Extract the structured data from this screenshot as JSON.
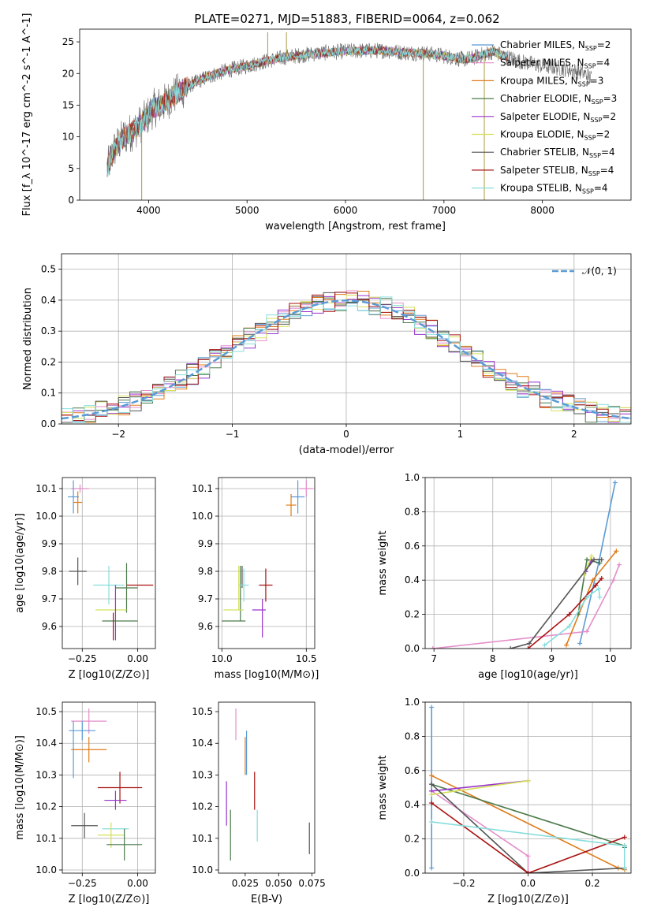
{
  "figure_title": "PLATE=0271, MJD=51883, FIBERID=0064, z=0.062",
  "colors": {
    "chabrier_miles": "#5b9bd5",
    "salpeter_miles": "#e48ec9",
    "kroupa_miles": "#e07b1a",
    "chabrier_elodie": "#4c7a4c",
    "salpeter_elodie": "#9933cc",
    "kroupa_elodie": "#d4e05a",
    "chabrier_stelib": "#555555",
    "salpeter_stelib": "#aa1111",
    "kroupa_stelib": "#88dddd"
  },
  "chart_data": [
    {
      "id": "spectrum",
      "type": "line",
      "xlabel": "wavelength [Angstrom, rest frame]",
      "ylabel": "Flux [f_λ 10^-17 erg cm^-2 s^-1 A^-1]",
      "xlim": [
        3300,
        8900
      ],
      "ylim": [
        0,
        27
      ],
      "xticks": [
        4000,
        5000,
        6000,
        7000,
        8000
      ],
      "yticks": [
        0,
        5,
        10,
        15,
        20,
        25
      ],
      "grid": false,
      "legend_position": "right",
      "legend": [
        {
          "label": "Chabrier MILES, N",
          "sub": "SSP",
          "suffix": "=2",
          "color": "#5b9bd5"
        },
        {
          "label": "Salpeter MILES, N",
          "sub": "SSP",
          "suffix": "=4",
          "color": "#e48ec9"
        },
        {
          "label": "Kroupa MILES, N",
          "sub": "SSP",
          "suffix": "=3",
          "color": "#e07b1a"
        },
        {
          "label": "Chabrier ELODIE, N",
          "sub": "SSP",
          "suffix": "=3",
          "color": "#4c7a4c"
        },
        {
          "label": "Salpeter ELODIE, N",
          "sub": "SSP",
          "suffix": "=2",
          "color": "#9933cc"
        },
        {
          "label": "Kroupa ELODIE, N",
          "sub": "SSP",
          "suffix": "=2",
          "color": "#d4e05a"
        },
        {
          "label": "Chabrier STELIB, N",
          "sub": "SSP",
          "suffix": "=4",
          "color": "#555555"
        },
        {
          "label": "Salpeter STELIB, N",
          "sub": "SSP",
          "suffix": "=4",
          "color": "#aa1111"
        },
        {
          "label": "Kroupa STELIB, N",
          "sub": "SSP",
          "suffix": "=4",
          "color": "#88dddd"
        }
      ],
      "continuum": [
        [
          3580,
          5
        ],
        [
          3650,
          8
        ],
        [
          3750,
          10
        ],
        [
          3850,
          11
        ],
        [
          3950,
          12.5
        ],
        [
          4050,
          14.5
        ],
        [
          4150,
          15.2
        ],
        [
          4250,
          16.5
        ],
        [
          4400,
          18
        ],
        [
          4600,
          19.5
        ],
        [
          4800,
          20.5
        ],
        [
          5000,
          21.2
        ],
        [
          5200,
          22
        ],
        [
          5400,
          22.6
        ],
        [
          5600,
          23
        ],
        [
          5800,
          23.3
        ],
        [
          6000,
          23.5
        ],
        [
          6200,
          23.6
        ],
        [
          6400,
          23.6
        ],
        [
          6600,
          23.3
        ],
        [
          6800,
          23.2
        ],
        [
          7000,
          22.8
        ],
        [
          7200,
          22.2
        ],
        [
          7300,
          22.5
        ],
        [
          7500,
          23.5
        ],
        [
          7600,
          22.8
        ],
        [
          7800,
          21.8
        ],
        [
          8000,
          21.2
        ],
        [
          8200,
          20.8
        ],
        [
          8400,
          20.2
        ],
        [
          8500,
          19.3
        ]
      ],
      "model_span": [
        3580,
        7650
      ],
      "spikes": [
        {
          "x": 3930,
          "y_min": 0
        },
        {
          "x": 5210,
          "y_max": 26.5
        },
        {
          "x": 5400,
          "y_max": 26.5
        },
        {
          "x": 6790,
          "y_min": 0
        },
        {
          "x": 7410,
          "y_min": 0
        }
      ]
    },
    {
      "id": "residuals",
      "type": "histogram",
      "xlabel": "(data-model)/error",
      "ylabel": "Normed distribution",
      "xlim": [
        -2.5,
        2.5
      ],
      "ylim": [
        0,
        0.55
      ],
      "xticks": [
        -2,
        -1,
        0,
        1,
        2
      ],
      "yticks": [
        0.0,
        0.1,
        0.2,
        0.3,
        0.4,
        0.5
      ],
      "bin_width": 0.1,
      "grid": true,
      "legend_position": "top-right",
      "reference_curve": {
        "label": "𝒩(0, 1)",
        "mean": 0,
        "sigma": 1,
        "color": "#5b9bd5"
      }
    },
    {
      "id": "age_vs_Z",
      "type": "errorbar",
      "xlabel": "Z [log10(Z/Z⊙)]",
      "ylabel": "age  [log10(age/yr)]",
      "xlim": [
        -0.34,
        0.08
      ],
      "ylim": [
        9.52,
        10.14
      ],
      "xticks": [
        -0.25,
        0.0
      ],
      "yticks": [
        9.6,
        9.7,
        9.8,
        9.9,
        10.0,
        10.1
      ],
      "grid": true,
      "points": [
        {
          "color": "#e48ec9",
          "x": -0.26,
          "xerr": 0.04,
          "y": 10.1,
          "yerr": 0.015
        },
        {
          "color": "#5b9bd5",
          "x": -0.29,
          "xerr": 0.025,
          "y": 10.07,
          "yerr": 0.06
        },
        {
          "color": "#e07b1a",
          "x": -0.27,
          "xerr": 0.02,
          "y": 10.05,
          "yerr": 0.04
        },
        {
          "color": "#555555",
          "x": -0.27,
          "xerr": 0.04,
          "y": 9.8,
          "yerr": 0.05
        },
        {
          "color": "#88dddd",
          "x": -0.13,
          "xerr": 0.07,
          "y": 9.75,
          "yerr": 0.07
        },
        {
          "color": "#4c7a4c",
          "x": -0.05,
          "xerr": 0.05,
          "y": 9.74,
          "yerr": 0.09
        },
        {
          "color": "#aa1111",
          "x": 0.01,
          "xerr": 0.06,
          "y": 9.75,
          "yerr": 0.0
        },
        {
          "color": "#d4e05a",
          "x": -0.12,
          "xerr": 0.07,
          "y": 9.66,
          "yerr": 0.0
        },
        {
          "color": "#9933cc",
          "x": -0.1,
          "xerr": 0.0,
          "y": 9.65,
          "yerr": 0.1
        },
        {
          "color": "#4c7a4c",
          "x": -0.08,
          "xerr": 0.08,
          "y": 9.62,
          "yerr": 0.0
        },
        {
          "color": "#aa1111",
          "x": -0.11,
          "xerr": 0.0,
          "y": 9.6,
          "yerr": 0.05
        }
      ]
    },
    {
      "id": "age_vs_mass",
      "type": "errorbar",
      "xlabel": "mass [log10(M/M⊙)]",
      "ylabel": "",
      "xlim": [
        9.98,
        10.55
      ],
      "ylim": [
        9.52,
        10.14
      ],
      "xticks": [
        10.0,
        10.5
      ],
      "yticks": [
        9.6,
        9.7,
        9.8,
        9.9,
        10.0,
        10.1
      ],
      "grid": true,
      "points": [
        {
          "color": "#e48ec9",
          "x": 10.5,
          "xerr": 0.04,
          "y": 10.1,
          "yerr": 0.03
        },
        {
          "color": "#5b9bd5",
          "x": 10.45,
          "xerr": 0.04,
          "y": 10.07,
          "yerr": 0.06
        },
        {
          "color": "#e07b1a",
          "x": 10.41,
          "xerr": 0.03,
          "y": 10.04,
          "yerr": 0.04
        },
        {
          "color": "#555555",
          "x": 10.12,
          "xerr": 0.0,
          "y": 9.78,
          "yerr": 0.04
        },
        {
          "color": "#4c7a4c",
          "x": 10.11,
          "xerr": 0.0,
          "y": 9.72,
          "yerr": 0.1
        },
        {
          "color": "#88dddd",
          "x": 10.13,
          "xerr": 0.03,
          "y": 9.75,
          "yerr": 0.06
        },
        {
          "color": "#d4e05a",
          "x": 10.1,
          "xerr": 0.0,
          "y": 9.74,
          "yerr": 0.08
        },
        {
          "color": "#aa1111",
          "x": 10.26,
          "xerr": 0.04,
          "y": 9.75,
          "yerr": 0.06
        },
        {
          "color": "#9933cc",
          "x": 10.22,
          "xerr": 0.04,
          "y": 9.66,
          "yerr": 0.0
        },
        {
          "color": "#9933cc",
          "x": 10.24,
          "xerr": 0.0,
          "y": 9.63,
          "yerr": 0.07
        },
        {
          "color": "#d4e05a",
          "x": 10.07,
          "xerr": 0.06,
          "y": 9.66,
          "yerr": 0.0
        },
        {
          "color": "#4c7a4c",
          "x": 10.07,
          "xerr": 0.07,
          "y": 9.62,
          "yerr": 0.0
        }
      ]
    },
    {
      "id": "weight_vs_age",
      "type": "line",
      "xlabel": "age  [log10(age/yr)]",
      "ylabel": "mass weight",
      "xlim": [
        6.85,
        10.35
      ],
      "ylim": [
        0,
        1
      ],
      "xticks": [
        7,
        8,
        9,
        10
      ],
      "yticks": [
        0.0,
        0.2,
        0.4,
        0.6,
        0.8,
        1.0
      ],
      "grid": true,
      "series": [
        {
          "color": "#5b9bd5",
          "points": [
            [
              9.48,
              0.03
            ],
            [
              9.8,
              0.5
            ],
            [
              10.08,
              0.97
            ]
          ]
        },
        {
          "color": "#e48ec9",
          "points": [
            [
              6.98,
              0.0
            ],
            [
              9.6,
              0.1
            ],
            [
              10.05,
              0.4
            ],
            [
              10.15,
              0.49
            ]
          ]
        },
        {
          "color": "#e07b1a",
          "points": [
            [
              9.25,
              0.02
            ],
            [
              9.7,
              0.4
            ],
            [
              10.1,
              0.57
            ]
          ]
        },
        {
          "color": "#4c7a4c",
          "points": [
            [
              9.45,
              0.2
            ],
            [
              9.6,
              0.52
            ],
            [
              9.82,
              0.5
            ]
          ]
        },
        {
          "color": "#9933cc",
          "points": [
            [
              9.58,
              0.45
            ],
            [
              9.68,
              0.52
            ]
          ]
        },
        {
          "color": "#d4e05a",
          "points": [
            [
              9.55,
              0.43
            ],
            [
              9.68,
              0.54
            ]
          ]
        },
        {
          "color": "#555555",
          "points": [
            [
              8.3,
              0.0
            ],
            [
              8.62,
              0.03
            ],
            [
              9.72,
              0.52
            ],
            [
              9.85,
              0.52
            ]
          ]
        },
        {
          "color": "#aa1111",
          "points": [
            [
              8.6,
              0.0
            ],
            [
              9.3,
              0.2
            ],
            [
              9.75,
              0.37
            ],
            [
              9.85,
              0.41
            ]
          ]
        },
        {
          "color": "#88dddd",
          "points": [
            [
              8.88,
              0.02
            ],
            [
              9.3,
              0.13
            ],
            [
              9.6,
              0.3
            ],
            [
              9.8,
              0.35
            ],
            [
              9.82,
              0.3
            ]
          ]
        }
      ]
    },
    {
      "id": "mass_vs_Z",
      "type": "errorbar",
      "xlabel": "Z [log10(Z/Z⊙)]",
      "ylabel": "mass [log10(M/M⊙)]",
      "xlim": [
        -0.34,
        0.08
      ],
      "ylim": [
        9.99,
        10.53
      ],
      "xticks": [
        -0.25,
        0.0
      ],
      "yticks": [
        10.0,
        10.1,
        10.2,
        10.3,
        10.4,
        10.5
      ],
      "grid": true,
      "points": [
        {
          "color": "#e48ec9",
          "x": -0.22,
          "xerr": 0.08,
          "y": 10.47,
          "yerr": 0.04
        },
        {
          "color": "#5b9bd5",
          "x": -0.25,
          "xerr": 0.06,
          "y": 10.44,
          "yerr": 0.03
        },
        {
          "color": "#5b9bd5",
          "x": -0.29,
          "xerr": 0.0,
          "y": 10.38,
          "yerr": 0.09
        },
        {
          "color": "#e07b1a",
          "x": -0.22,
          "xerr": 0.08,
          "y": 10.38,
          "yerr": 0.04
        },
        {
          "color": "#aa1111",
          "x": -0.08,
          "xerr": 0.1,
          "y": 10.26,
          "yerr": 0.05
        },
        {
          "color": "#9933cc",
          "x": -0.1,
          "xerr": 0.05,
          "y": 10.22,
          "yerr": 0.03
        },
        {
          "color": "#555555",
          "x": -0.24,
          "xerr": 0.06,
          "y": 10.14,
          "yerr": 0.04
        },
        {
          "color": "#88dddd",
          "x": -0.1,
          "xerr": 0.06,
          "y": 10.13,
          "yerr": 0.0
        },
        {
          "color": "#d4e05a",
          "x": -0.12,
          "xerr": 0.06,
          "y": 10.11,
          "yerr": 0.04
        },
        {
          "color": "#4c7a4c",
          "x": -0.06,
          "xerr": 0.08,
          "y": 10.08,
          "yerr": 0.05
        }
      ]
    },
    {
      "id": "mass_vs_ebv",
      "type": "errorbar",
      "xlabel": "E(B-V)",
      "ylabel": "",
      "xlim": [
        0.005,
        0.077
      ],
      "ylim": [
        9.99,
        10.53
      ],
      "xticks": [
        0.025,
        0.05,
        0.075
      ],
      "yticks": [
        10.0,
        10.1,
        10.2,
        10.3,
        10.4,
        10.5
      ],
      "grid": false,
      "points": [
        {
          "color": "#e48ec9",
          "x": 0.018,
          "xerr": 0.0,
          "y": 10.46,
          "yerr": 0.05
        },
        {
          "color": "#5b9bd5",
          "x": 0.026,
          "xerr": 0.0,
          "y": 10.37,
          "yerr": 0.07
        },
        {
          "color": "#e07b1a",
          "x": 0.025,
          "xerr": 0.0,
          "y": 10.36,
          "yerr": 0.06
        },
        {
          "color": "#aa1111",
          "x": 0.032,
          "xerr": 0.0,
          "y": 10.25,
          "yerr": 0.06
        },
        {
          "color": "#9933cc",
          "x": 0.011,
          "xerr": 0.0,
          "y": 10.21,
          "yerr": 0.07
        },
        {
          "color": "#88dddd",
          "x": 0.034,
          "xerr": 0.0,
          "y": 10.14,
          "yerr": 0.05
        },
        {
          "color": "#4c7a4c",
          "x": 0.014,
          "xerr": 0.0,
          "y": 10.11,
          "yerr": 0.08
        },
        {
          "color": "#555555",
          "x": 0.073,
          "xerr": 0.0,
          "y": 10.1,
          "yerr": 0.05
        }
      ]
    },
    {
      "id": "weight_vs_Z",
      "type": "line",
      "xlabel": "Z [log10(Z/Z⊙)]",
      "ylabel": "mass weight",
      "xlim": [
        -0.32,
        0.32
      ],
      "ylim": [
        0,
        1
      ],
      "xticks": [
        -0.2,
        0.0,
        0.2
      ],
      "yticks": [
        0.0,
        0.2,
        0.4,
        0.6,
        0.8,
        1.0
      ],
      "grid": true,
      "series": [
        {
          "color": "#5b9bd5",
          "points": [
            [
              -0.3,
              0.97
            ],
            [
              -0.3,
              0.03
            ]
          ]
        },
        {
          "color": "#e48ec9",
          "points": [
            [
              -0.3,
              0.48
            ],
            [
              0.0,
              0.1
            ],
            [
              0.0,
              0.0
            ]
          ]
        },
        {
          "color": "#e07b1a",
          "points": [
            [
              -0.3,
              0.57
            ],
            [
              0.28,
              0.03
            ],
            [
              0.3,
              0.02
            ]
          ]
        },
        {
          "color": "#4c7a4c",
          "points": [
            [
              -0.3,
              0.52
            ],
            [
              0.3,
              0.16
            ],
            [
              0.3,
              0.15
            ]
          ]
        },
        {
          "color": "#9933cc",
          "points": [
            [
              -0.3,
              0.48
            ],
            [
              0.0,
              0.54
            ]
          ]
        },
        {
          "color": "#d4e05a",
          "points": [
            [
              -0.3,
              0.46
            ],
            [
              0.0,
              0.54
            ]
          ]
        },
        {
          "color": "#555555",
          "points": [
            [
              -0.3,
              0.52
            ],
            [
              0.0,
              0.0
            ],
            [
              0.3,
              0.03
            ]
          ]
        },
        {
          "color": "#aa1111",
          "points": [
            [
              -0.3,
              0.41
            ],
            [
              0.0,
              0.0
            ],
            [
              0.3,
              0.21
            ]
          ]
        },
        {
          "color": "#88dddd",
          "points": [
            [
              -0.3,
              0.3
            ],
            [
              0.3,
              0.16
            ],
            [
              0.3,
              0.03
            ]
          ]
        }
      ]
    }
  ]
}
